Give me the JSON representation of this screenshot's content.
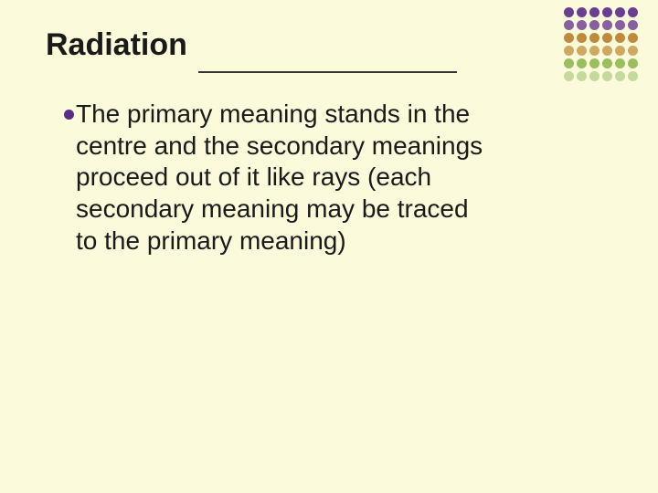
{
  "slide": {
    "title": "Radiation",
    "bullet_text": "The primary meaning stands in the centre and the secondary meanings proceed out of it like rays (each secondary meaning may be traced to the primary meaning)",
    "background_color": "#fbfadb",
    "title_color": "#1a1a1a",
    "title_fontsize": 34,
    "title_fontweight": "bold",
    "body_color": "#1a1a1a",
    "body_fontsize": 28,
    "rule_color": "#333333",
    "bullet_marker_color": "#5a2d82",
    "bullet_marker_size": 11
  },
  "dot_grid": {
    "rows": 6,
    "cols": 6,
    "dot_size": 11,
    "cell_size": 13,
    "colors": [
      [
        "#6a3e91",
        "#6a3e91",
        "#6a3e91",
        "#6a3e91",
        "#6a3e91",
        "#6a3e91"
      ],
      [
        "#86609f",
        "#86609f",
        "#86609f",
        "#86609f",
        "#86609f",
        "#86609f"
      ],
      [
        "#c08a3c",
        "#c08a3c",
        "#c08a3c",
        "#c08a3c",
        "#c08a3c",
        "#c08a3c"
      ],
      [
        "#cfa861",
        "#cfa861",
        "#cfa861",
        "#cfa861",
        "#cfa861",
        "#cfa861"
      ],
      [
        "#9bbf5f",
        "#9bbf5f",
        "#9bbf5f",
        "#9bbf5f",
        "#9bbf5f",
        "#9bbf5f"
      ],
      [
        "#c5d99b",
        "#c5d99b",
        "#c5d99b",
        "#c5d99b",
        "#c5d99b",
        "#c5d99b"
      ]
    ]
  }
}
